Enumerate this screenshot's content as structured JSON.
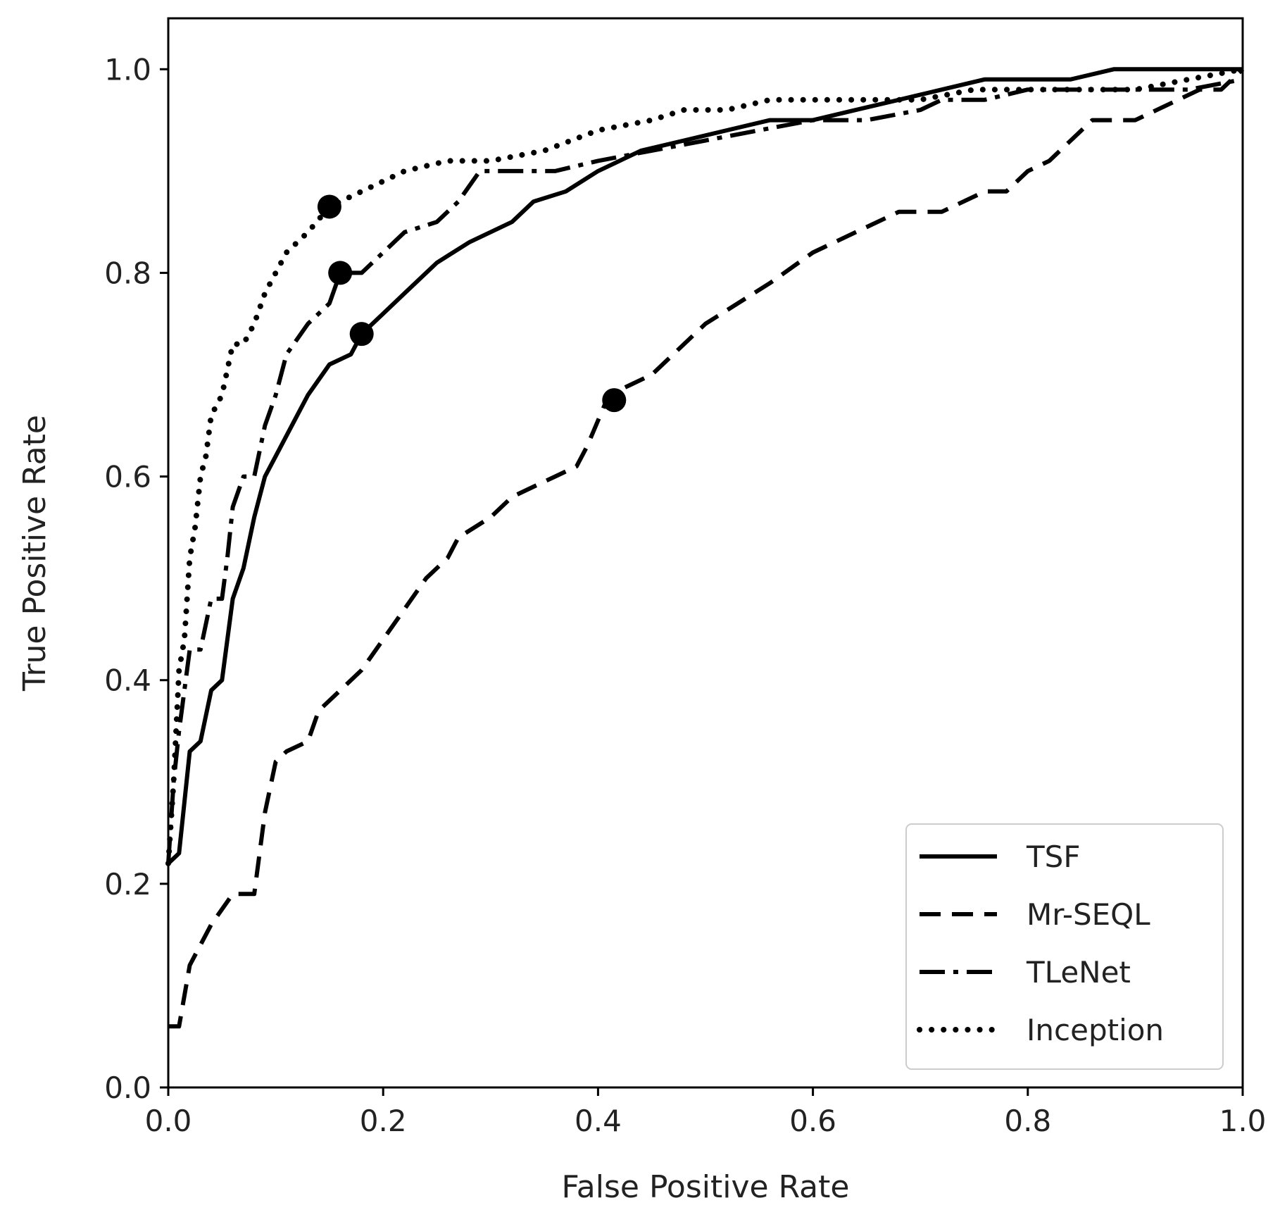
{
  "chart_data": {
    "type": "line",
    "title": "",
    "xlabel": "False Positive Rate",
    "ylabel": "True Positive Rate",
    "xlim": [
      0.0,
      1.0
    ],
    "ylim": [
      0.0,
      1.05
    ],
    "xticks": [
      "0.0",
      "0.2",
      "0.4",
      "0.6",
      "0.8",
      "1.0"
    ],
    "yticks": [
      "0.0",
      "0.2",
      "0.4",
      "0.6",
      "0.8",
      "1.0"
    ],
    "grid": false,
    "legend_position": "lower-right",
    "color": "#000000",
    "series": [
      {
        "name": "TSF",
        "style": "solid",
        "x": [
          0.0,
          0.01,
          0.02,
          0.03,
          0.04,
          0.05,
          0.06,
          0.07,
          0.08,
          0.09,
          0.1,
          0.12,
          0.13,
          0.15,
          0.17,
          0.18,
          0.2,
          0.22,
          0.25,
          0.28,
          0.3,
          0.32,
          0.34,
          0.37,
          0.4,
          0.42,
          0.44,
          0.48,
          0.52,
          0.56,
          0.6,
          0.64,
          0.68,
          0.72,
          0.76,
          0.8,
          0.84,
          0.88,
          0.92,
          0.96,
          1.0
        ],
        "y": [
          0.22,
          0.23,
          0.33,
          0.34,
          0.39,
          0.4,
          0.48,
          0.51,
          0.56,
          0.6,
          0.62,
          0.66,
          0.68,
          0.71,
          0.72,
          0.74,
          0.76,
          0.78,
          0.81,
          0.83,
          0.84,
          0.85,
          0.87,
          0.88,
          0.9,
          0.91,
          0.92,
          0.93,
          0.94,
          0.95,
          0.95,
          0.96,
          0.97,
          0.98,
          0.99,
          0.99,
          0.99,
          1.0,
          1.0,
          1.0,
          1.0
        ],
        "marker": {
          "x": 0.18,
          "y": 0.74
        }
      },
      {
        "name": "Mr-SEQL",
        "style": "dashed",
        "x": [
          0.0,
          0.01,
          0.02,
          0.04,
          0.06,
          0.08,
          0.09,
          0.1,
          0.11,
          0.13,
          0.14,
          0.16,
          0.18,
          0.2,
          0.22,
          0.24,
          0.26,
          0.27,
          0.3,
          0.32,
          0.34,
          0.36,
          0.38,
          0.39,
          0.41,
          0.43,
          0.45,
          0.47,
          0.5,
          0.53,
          0.56,
          0.6,
          0.64,
          0.68,
          0.72,
          0.76,
          0.78,
          0.8,
          0.82,
          0.84,
          0.86,
          0.9,
          0.94,
          0.96,
          0.98,
          1.0
        ],
        "y": [
          0.06,
          0.06,
          0.12,
          0.16,
          0.19,
          0.19,
          0.27,
          0.32,
          0.33,
          0.34,
          0.37,
          0.39,
          0.41,
          0.44,
          0.47,
          0.5,
          0.52,
          0.54,
          0.56,
          0.58,
          0.59,
          0.6,
          0.61,
          0.63,
          0.68,
          0.69,
          0.7,
          0.72,
          0.75,
          0.77,
          0.79,
          0.82,
          0.84,
          0.86,
          0.86,
          0.88,
          0.88,
          0.9,
          0.91,
          0.93,
          0.95,
          0.95,
          0.97,
          0.98,
          0.98,
          1.0
        ],
        "marker": {
          "x": 0.415,
          "y": 0.675
        }
      },
      {
        "name": "TLeNet",
        "style": "dashdot",
        "x": [
          0.0,
          0.005,
          0.01,
          0.02,
          0.03,
          0.04,
          0.05,
          0.055,
          0.06,
          0.07,
          0.08,
          0.09,
          0.1,
          0.11,
          0.13,
          0.15,
          0.16,
          0.18,
          0.2,
          0.22,
          0.25,
          0.27,
          0.29,
          0.32,
          0.36,
          0.4,
          0.45,
          0.5,
          0.55,
          0.6,
          0.65,
          0.7,
          0.72,
          0.76,
          0.8,
          0.85,
          0.9,
          0.95,
          1.0
        ],
        "y": [
          0.22,
          0.3,
          0.35,
          0.43,
          0.43,
          0.48,
          0.48,
          0.52,
          0.57,
          0.6,
          0.6,
          0.65,
          0.68,
          0.72,
          0.75,
          0.77,
          0.8,
          0.8,
          0.82,
          0.84,
          0.85,
          0.87,
          0.9,
          0.9,
          0.9,
          0.91,
          0.92,
          0.93,
          0.94,
          0.95,
          0.95,
          0.96,
          0.97,
          0.97,
          0.98,
          0.98,
          0.98,
          0.98,
          0.99
        ],
        "marker": {
          "x": 0.16,
          "y": 0.8
        }
      },
      {
        "name": "Inception",
        "style": "dotted",
        "x": [
          0.0,
          0.005,
          0.01,
          0.015,
          0.02,
          0.025,
          0.03,
          0.035,
          0.04,
          0.045,
          0.05,
          0.06,
          0.07,
          0.08,
          0.09,
          0.1,
          0.11,
          0.13,
          0.15,
          0.18,
          0.22,
          0.26,
          0.3,
          0.35,
          0.4,
          0.45,
          0.48,
          0.52,
          0.56,
          0.6,
          0.65,
          0.7,
          0.75,
          0.8,
          0.85,
          0.9,
          0.95,
          1.0
        ],
        "y": [
          0.22,
          0.3,
          0.41,
          0.44,
          0.52,
          0.55,
          0.6,
          0.62,
          0.66,
          0.67,
          0.68,
          0.73,
          0.73,
          0.75,
          0.78,
          0.8,
          0.82,
          0.84,
          0.865,
          0.88,
          0.9,
          0.91,
          0.91,
          0.92,
          0.94,
          0.95,
          0.96,
          0.96,
          0.97,
          0.97,
          0.97,
          0.97,
          0.98,
          0.98,
          0.98,
          0.98,
          0.99,
          1.0
        ],
        "marker": {
          "x": 0.15,
          "y": 0.865
        }
      }
    ]
  }
}
